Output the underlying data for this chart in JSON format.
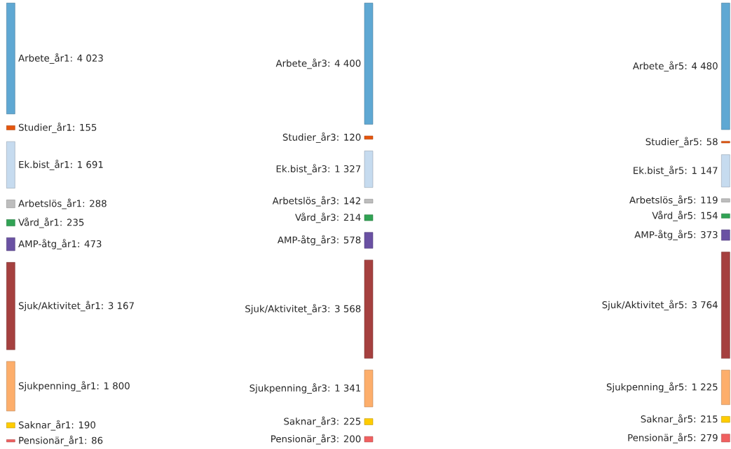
{
  "chart_data": [
    {
      "type": "other",
      "categories": [
        null,
        null,
        null,
        null,
        null,
        null,
        null,
        null,
        null,
        null
      ],
      "values": [
        4023,
        155,
        1691,
        288,
        235,
        473,
        3167,
        1800,
        190,
        86
      ],
      "value_labels": [
        "Arbete_år1: 4 023",
        "Studier_år1: 155",
        "Ek.bist_år1: 1 691",
        "Arbetslös_år1: 288",
        "Vård_år1: 235",
        "AMP-åtg_år1: 473",
        "Sjuk/Aktivitet_år1: 3 167",
        "Sjukpenning_år1: 1 800",
        "Saknar_år1: 190",
        "Pensionär_år1: 86"
      ],
      "colors": [
        "#5fa8d3",
        "#e6550d",
        "#c6dbef",
        "#bdbdbd",
        "#31a354",
        "#6a51a3",
        "#a5403f",
        "#fdae6b",
        "#ffcc00",
        "#f06060"
      ]
    },
    {
      "type": "other",
      "categories": [
        null,
        null,
        null,
        null,
        null,
        null,
        null,
        null,
        null,
        null
      ],
      "values": [
        4400,
        120,
        1327,
        142,
        214,
        578,
        3568,
        1341,
        225,
        200
      ],
      "value_labels": [
        "Arbete_år3: 4 400",
        "Studier_år3: 120",
        "Ek.bist_år3: 1 327",
        "Arbetslös_år3: 142",
        "Vård_år3: 214",
        "AMP-åtg_år3: 578",
        "Sjuk/Aktivitet_år3: 3 568",
        "Sjukpenning_år3: 1 341",
        "Saknar_år3: 225",
        "Pensionär_år3: 200"
      ],
      "colors": [
        "#5fa8d3",
        "#e6550d",
        "#c6dbef",
        "#bdbdbd",
        "#31a354",
        "#6a51a3",
        "#a5403f",
        "#fdae6b",
        "#ffcc00",
        "#f06060"
      ]
    },
    {
      "type": "other",
      "categories": [
        null,
        null,
        null,
        null,
        null,
        null,
        null,
        null,
        null,
        null
      ],
      "values": [
        4480,
        58,
        1147,
        119,
        154,
        373,
        3764,
        1225,
        215,
        279
      ],
      "value_labels": [
        "Arbete_år5: 4 480",
        "Studier_år5: 58",
        "Ek.bist_år5: 1 147",
        "Arbetslös_år5: 119",
        "Vård_år5: 154",
        "AMP-åtg_år5: 373",
        "Sjuk/Aktivitet_år5: 3 764",
        "Sjukpenning_år5: 1 225",
        "Saknar_år5: 215",
        "Pensionär_år5: 279"
      ],
      "colors": [
        "#5fa8d3",
        "#e6550d",
        "#c6dbef",
        "#bdbdbd",
        "#31a354",
        "#6a51a3",
        "#a5403f",
        "#fdae6b",
        "#ffcc00",
        "#f06060"
      ]
    }
  ]
}
